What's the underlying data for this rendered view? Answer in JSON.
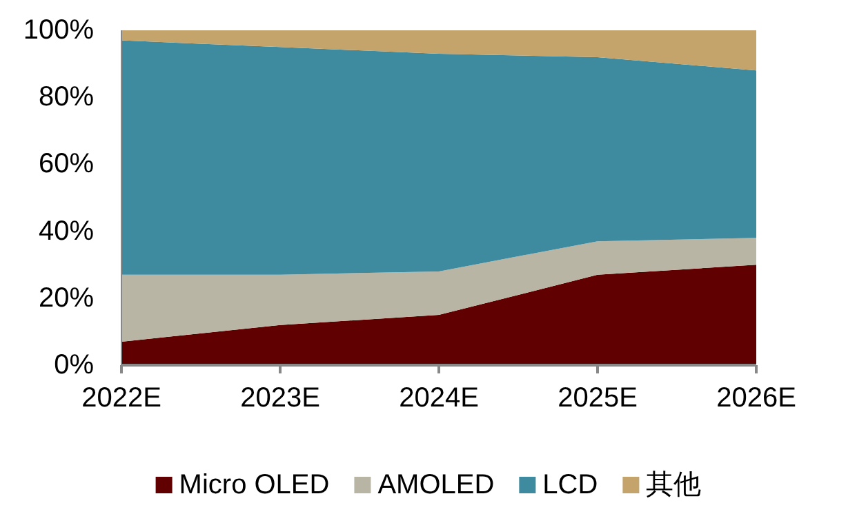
{
  "chart_data": {
    "type": "area",
    "stacked": true,
    "categories": [
      "2022E",
      "2023E",
      "2024E",
      "2025E",
      "2026E"
    ],
    "series": [
      {
        "name": "Micro OLED",
        "color": "#600000",
        "values": [
          7,
          12,
          15,
          27,
          30
        ]
      },
      {
        "name": "AMOLED",
        "color": "#b8b5a5",
        "values": [
          20,
          15,
          13,
          10,
          8
        ]
      },
      {
        "name": "LCD",
        "color": "#3e8a9e",
        "values": [
          70,
          68,
          65,
          55,
          50
        ]
      },
      {
        "name": "其他",
        "color": "#c4a46a",
        "values": [
          3,
          5,
          7,
          8,
          12
        ]
      }
    ],
    "ylim": [
      0,
      100
    ],
    "yticks": [
      {
        "value": 0,
        "label": "0%"
      },
      {
        "value": 20,
        "label": "20%"
      },
      {
        "value": 40,
        "label": "40%"
      },
      {
        "value": 60,
        "label": "60%"
      },
      {
        "value": 80,
        "label": "80%"
      },
      {
        "value": 100,
        "label": "100%"
      }
    ],
    "legend": "bottom",
    "grid": false
  }
}
